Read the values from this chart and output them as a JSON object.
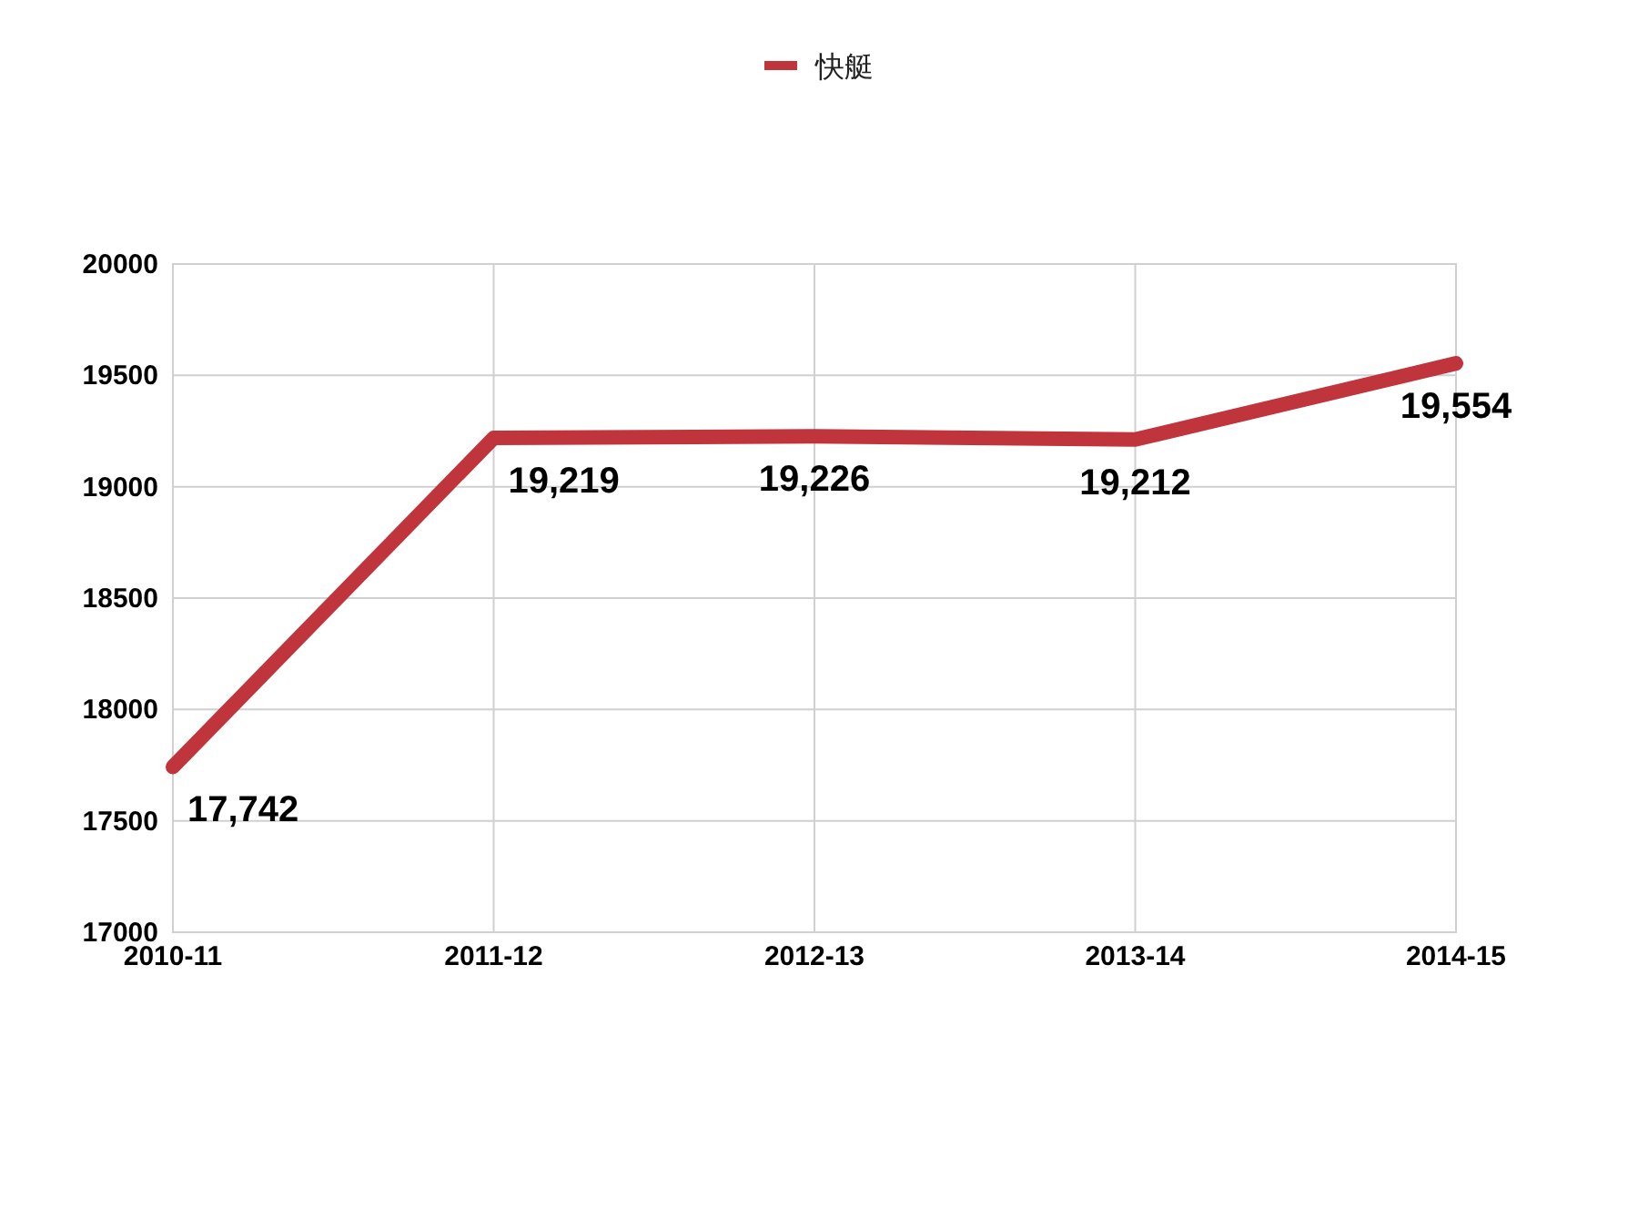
{
  "chart_data": {
    "type": "line",
    "categories": [
      "2010-11",
      "2011-12",
      "2012-13",
      "2013-14",
      "2014-15"
    ],
    "series": [
      {
        "name": "快艇",
        "color": "#c0343c",
        "values": [
          17742,
          19219,
          19226,
          19212,
          19554
        ],
        "value_labels": [
          "17,742",
          "19,219",
          "19,226",
          "19,212",
          "19,554"
        ]
      }
    ],
    "ylim": [
      17000,
      20000
    ],
    "yticks": [
      17000,
      17500,
      18000,
      18500,
      19000,
      19500,
      20000
    ],
    "grid": true,
    "legend": "top"
  }
}
